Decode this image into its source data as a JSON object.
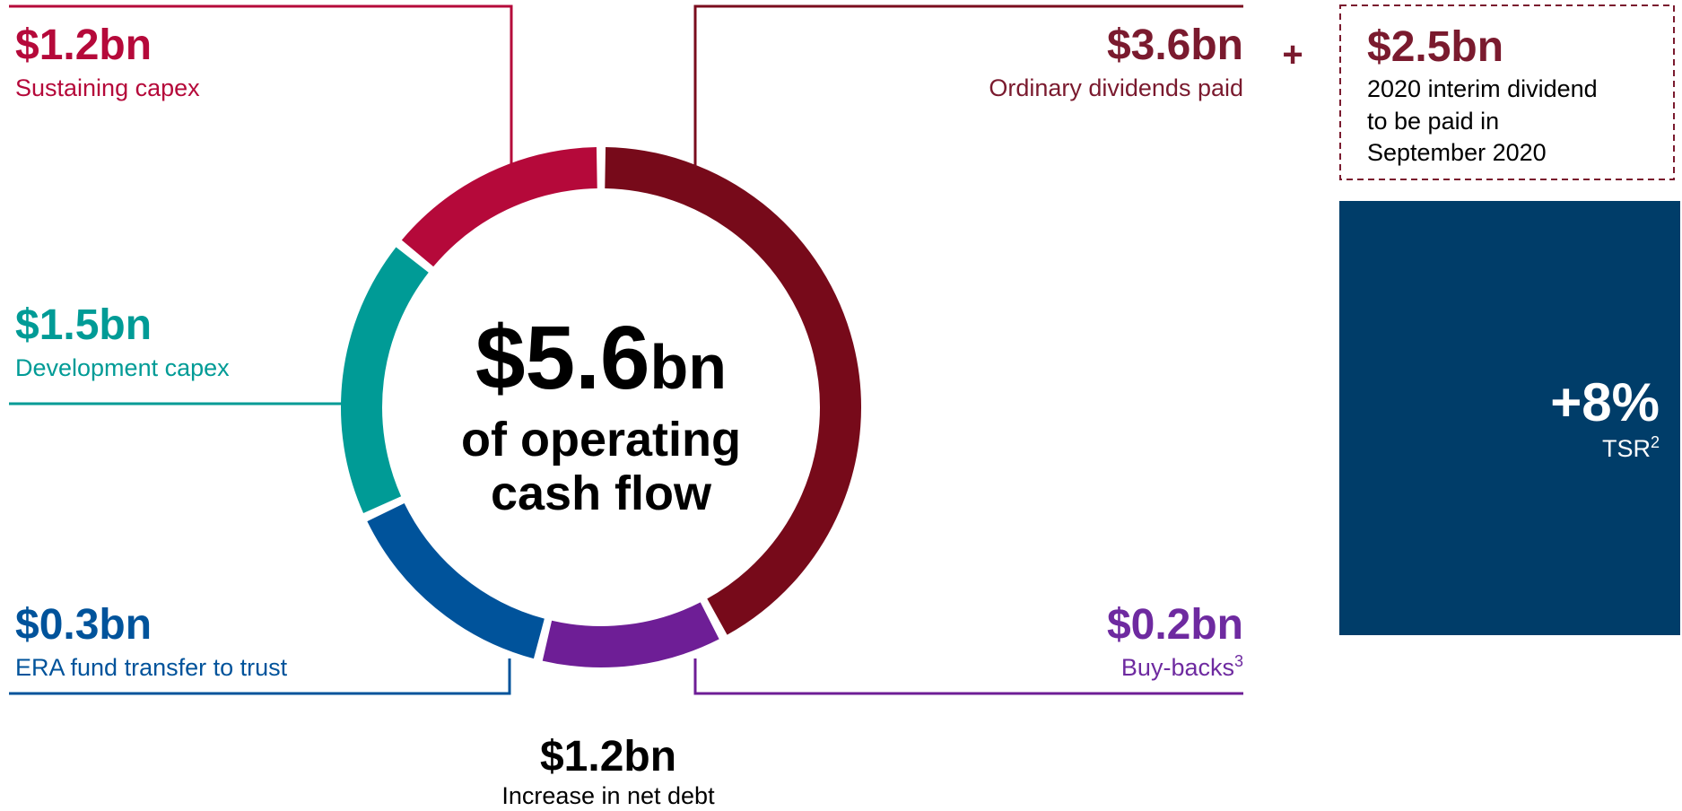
{
  "uses": [
    {
      "amount": "$1.2bn",
      "label": "Sustaining capex"
    },
    {
      "amount": "$1.5bn",
      "label": "Development capex"
    },
    {
      "amount": "$0.3bn",
      "label": "ERA fund transfer to trust"
    },
    {
      "amount": "$3.6bn",
      "label": "Ordinary dividends paid"
    },
    {
      "amount": "$0.2bn",
      "label": "Buy-backs",
      "note": "3"
    }
  ],
  "center": {
    "amount": "$5.6",
    "unit": "bn",
    "line1": "of operating",
    "line2": "cash flow"
  },
  "net_debt": {
    "amount": "$1.2bn",
    "label": "Increase in net debt"
  },
  "plus": "+",
  "interim": {
    "amount": "$2.5bn",
    "lines": [
      "2020 interim dividend",
      "to be paid in",
      "September 2020"
    ]
  },
  "tsr": {
    "value": "+8%",
    "label": "TSR",
    "note": "2"
  }
}
